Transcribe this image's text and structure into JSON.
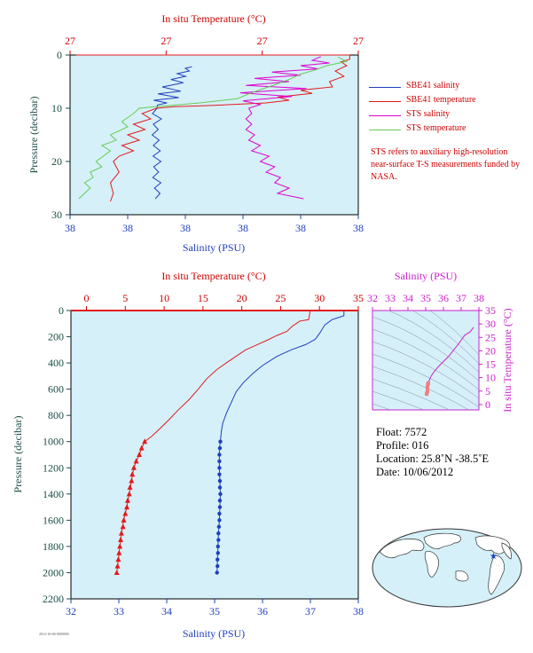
{
  "colors": {
    "temp": "#e31a1c",
    "salinity": "#1f3fbf",
    "sts_sal": "#e000d0",
    "sts_temp": "#66cc55",
    "axis_teal": "#1a4d44",
    "pink": "#cc22cc",
    "bg": "#d5f0f8"
  },
  "chart_data": [
    {
      "id": "upper",
      "type": "line",
      "top_axis_label": "In situ Temperature (°C)",
      "bottom_axis_label": "Salinity (PSU)",
      "left_axis_label": "Pressure (decibar)",
      "top_ticks": [
        "27",
        "27",
        "27",
        "27"
      ],
      "bottom_ticks": [
        "38",
        "38",
        "38",
        "38",
        "38",
        "38"
      ],
      "left_ticks": [
        "0",
        "10",
        "20",
        "30"
      ],
      "ylim": [
        30,
        0
      ],
      "series": [
        {
          "name": "SBE41 salinity",
          "color": "#1f3fbf",
          "points": [
            [
              30.2,
              10
            ],
            [
              28.6,
              11
            ],
            [
              31.7,
              12
            ],
            [
              28.9,
              13
            ],
            [
              30.6,
              14
            ],
            [
              28.5,
              15
            ],
            [
              30.9,
              16
            ],
            [
              28.9,
              17
            ],
            [
              31.3,
              18
            ],
            [
              28.8,
              19
            ],
            [
              31.5,
              20
            ],
            [
              29.0,
              21
            ],
            [
              30.7,
              22
            ],
            [
              28.7,
              23
            ],
            [
              31.5,
              24
            ],
            [
              29.3,
              25
            ],
            [
              31.2,
              26
            ],
            [
              29.6,
              27
            ],
            [
              30.3,
              9.4
            ],
            [
              33.6,
              9.0
            ],
            [
              29.0,
              8.5
            ],
            [
              37.7,
              8.0
            ],
            [
              30.5,
              7.3
            ],
            [
              38.4,
              6.8
            ],
            [
              32.0,
              6.0
            ],
            [
              39.3,
              5.2
            ],
            [
              35.0,
              4.6
            ],
            [
              40.1,
              4.0
            ],
            [
              37.2,
              3.5
            ],
            [
              41.4,
              3.0
            ],
            [
              40.0,
              2.5
            ],
            [
              42.3,
              2.2
            ]
          ]
        },
        {
          "name": "SBE41 temperature",
          "color": "#e31a1c",
          "points": [
            [
              2,
              0
            ],
            [
              97,
              0
            ],
            [
              97,
              0.8
            ],
            [
              94,
              1.3
            ],
            [
              96,
              2
            ],
            [
              92,
              3
            ],
            [
              95,
              4
            ],
            [
              90,
              5
            ],
            [
              91,
              6
            ],
            [
              80,
              6.6
            ],
            [
              84,
              7.2
            ],
            [
              72,
              7.9
            ],
            [
              76,
              8.5
            ],
            [
              68,
              9.0
            ],
            [
              48,
              9.5
            ],
            [
              36,
              9.7
            ],
            [
              30,
              10
            ],
            [
              25,
              11
            ],
            [
              28,
              12
            ],
            [
              22,
              13
            ],
            [
              26,
              14
            ],
            [
              20,
              15
            ],
            [
              24,
              16
            ],
            [
              18,
              17
            ],
            [
              22,
              18
            ],
            [
              17,
              19
            ],
            [
              15,
              20
            ],
            [
              17,
              22
            ],
            [
              14,
              24
            ],
            [
              15,
              26
            ],
            [
              14,
              27.5
            ]
          ]
        },
        {
          "name": "STS salinity",
          "color": "#e000d0",
          "points": [
            [
              87,
              0.3
            ],
            [
              84,
              1.0
            ],
            [
              90,
              1.5
            ],
            [
              80,
              2.0
            ],
            [
              86,
              2.6
            ],
            [
              70,
              3.2
            ],
            [
              80,
              3.8
            ],
            [
              64,
              4.4
            ],
            [
              76,
              5.0
            ],
            [
              61,
              5.7
            ],
            [
              82,
              6.3
            ],
            [
              59,
              7.1
            ],
            [
              77,
              7.8
            ],
            [
              60,
              8.6
            ],
            [
              66,
              9.3
            ],
            [
              62,
              10
            ],
            [
              63,
              11
            ],
            [
              61,
              12
            ],
            [
              63,
              13
            ],
            [
              61,
              14
            ],
            [
              64,
              15
            ],
            [
              62,
              16
            ],
            [
              66,
              17
            ],
            [
              63,
              18
            ],
            [
              69,
              19
            ],
            [
              66,
              20
            ],
            [
              71,
              21
            ],
            [
              68,
              22
            ],
            [
              73,
              23
            ],
            [
              71,
              24
            ],
            [
              76,
              25
            ],
            [
              72,
              26
            ],
            [
              81,
              27
            ]
          ]
        },
        {
          "name": "STS temperature",
          "color": "#66cc55",
          "points": [
            [
              93,
              0.4
            ],
            [
              96,
              1.2
            ],
            [
              89,
              2.0
            ],
            [
              85,
              2.8
            ],
            [
              80,
              3.6
            ],
            [
              76,
              4.6
            ],
            [
              71,
              5.6
            ],
            [
              66,
              6.5
            ],
            [
              62,
              7.3
            ],
            [
              58,
              8.2
            ],
            [
              45,
              9.0
            ],
            [
              32,
              9.6
            ],
            [
              24,
              10
            ],
            [
              22,
              11.0
            ],
            [
              18,
              12.5
            ],
            [
              20,
              13.5
            ],
            [
              14,
              15
            ],
            [
              16,
              16
            ],
            [
              11,
              17
            ],
            [
              14,
              18
            ],
            [
              9,
              20
            ],
            [
              11,
              21
            ],
            [
              7,
              22
            ],
            [
              8,
              23
            ],
            [
              5,
              24
            ],
            [
              7,
              25
            ],
            [
              3,
              27
            ]
          ]
        }
      ]
    },
    {
      "id": "lower",
      "type": "line",
      "top_axis_label": "In situ Temperature (°C)",
      "bottom_axis_label": "Salinity (PSU)",
      "left_axis_label": "Pressure (decibar)",
      "top_ticks": [
        "0",
        "5",
        "10",
        "15",
        "20",
        "25",
        "30",
        "35"
      ],
      "bottom_ticks": [
        "32",
        "33",
        "34",
        "35",
        "36",
        "37",
        "38"
      ],
      "left_ticks": [
        "0",
        "200",
        "400",
        "600",
        "800",
        "1000",
        "1200",
        "1400",
        "1600",
        "1800",
        "2000",
        "2200"
      ],
      "xlim_temp": [
        -2,
        35
      ],
      "xlim_sal": [
        32,
        38
      ],
      "ylim": [
        2200,
        0
      ],
      "temperature": [
        [
          28.8,
          0
        ],
        [
          28.7,
          40
        ],
        [
          28.6,
          70
        ],
        [
          27.5,
          80
        ],
        [
          26.5,
          120
        ],
        [
          25.8,
          160
        ],
        [
          24.5,
          190
        ],
        [
          23.5,
          220
        ],
        [
          22.0,
          260
        ],
        [
          20.5,
          300
        ],
        [
          19.5,
          340
        ],
        [
          18.0,
          400
        ],
        [
          16.8,
          450
        ],
        [
          15.5,
          520
        ],
        [
          14.4,
          600
        ],
        [
          13.2,
          680
        ],
        [
          11.8,
          760
        ],
        [
          10.5,
          840
        ],
        [
          9.3,
          910
        ],
        [
          8.4,
          960
        ],
        [
          7.5,
          1000
        ],
        [
          7.1,
          1050
        ],
        [
          6.8,
          1100
        ],
        [
          6.4,
          1150
        ],
        [
          6.1,
          1200
        ],
        [
          5.8,
          1300
        ],
        [
          5.5,
          1400
        ],
        [
          5.2,
          1500
        ],
        [
          4.8,
          1600
        ],
        [
          4.5,
          1700
        ],
        [
          4.3,
          1800
        ],
        [
          4.1,
          1900
        ],
        [
          3.9,
          2000
        ]
      ],
      "salinity": [
        [
          37.7,
          0
        ],
        [
          37.7,
          40
        ],
        [
          37.45,
          70
        ],
        [
          37.3,
          110
        ],
        [
          37.2,
          170
        ],
        [
          37.1,
          220
        ],
        [
          36.9,
          260
        ],
        [
          36.6,
          300
        ],
        [
          36.3,
          350
        ],
        [
          36.0,
          420
        ],
        [
          35.8,
          480
        ],
        [
          35.6,
          550
        ],
        [
          35.45,
          620
        ],
        [
          35.35,
          700
        ],
        [
          35.25,
          780
        ],
        [
          35.17,
          860
        ],
        [
          35.14,
          920
        ],
        [
          35.12,
          1000
        ],
        [
          35.1,
          1050
        ],
        [
          35.1,
          1100
        ],
        [
          35.1,
          1150
        ],
        [
          35.1,
          1200
        ],
        [
          35.11,
          1300
        ],
        [
          35.12,
          1400
        ],
        [
          35.11,
          1500
        ],
        [
          35.1,
          1600
        ],
        [
          35.08,
          1700
        ],
        [
          35.07,
          1800
        ],
        [
          35.06,
          1900
        ],
        [
          35.05,
          2000
        ]
      ],
      "temp_markers": [
        [
          7.5,
          1000
        ],
        [
          7.1,
          1050
        ],
        [
          6.8,
          1100
        ],
        [
          6.4,
          1150
        ],
        [
          6.1,
          1200
        ],
        [
          5.9,
          1250
        ],
        [
          5.8,
          1300
        ],
        [
          5.6,
          1350
        ],
        [
          5.5,
          1400
        ],
        [
          5.3,
          1450
        ],
        [
          5.2,
          1500
        ],
        [
          5.0,
          1550
        ],
        [
          4.8,
          1600
        ],
        [
          4.7,
          1650
        ],
        [
          4.5,
          1700
        ],
        [
          4.4,
          1750
        ],
        [
          4.3,
          1800
        ],
        [
          4.2,
          1850
        ],
        [
          4.1,
          1900
        ],
        [
          4.0,
          1950
        ],
        [
          3.9,
          2000
        ]
      ],
      "sal_markers": [
        [
          35.12,
          1000
        ],
        [
          35.11,
          1050
        ],
        [
          35.1,
          1100
        ],
        [
          35.1,
          1150
        ],
        [
          35.1,
          1200
        ],
        [
          35.1,
          1250
        ],
        [
          35.11,
          1300
        ],
        [
          35.11,
          1350
        ],
        [
          35.12,
          1400
        ],
        [
          35.11,
          1450
        ],
        [
          35.11,
          1500
        ],
        [
          35.1,
          1550
        ],
        [
          35.1,
          1600
        ],
        [
          35.09,
          1650
        ],
        [
          35.08,
          1700
        ],
        [
          35.08,
          1750
        ],
        [
          35.07,
          1800
        ],
        [
          35.07,
          1850
        ],
        [
          35.06,
          1900
        ],
        [
          35.06,
          1950
        ],
        [
          35.05,
          2000
        ]
      ]
    },
    {
      "id": "ts_diagram",
      "type": "line",
      "top_axis_label": "Salinity (PSU)",
      "right_axis_label": "In situ Temperature (°C)",
      "top_ticks": [
        "32",
        "33",
        "34",
        "35",
        "36",
        "37",
        "38"
      ],
      "right_ticks": [
        "0",
        "5",
        "10",
        "15",
        "20",
        "25",
        "30",
        "35"
      ],
      "xlim": [
        32,
        38
      ],
      "ylim": [
        -2,
        35
      ],
      "profile": [
        [
          37.7,
          28.8
        ],
        [
          37.5,
          27
        ],
        [
          37.2,
          25.8
        ],
        [
          36.9,
          23
        ],
        [
          36.6,
          20.5
        ],
        [
          36.3,
          18
        ],
        [
          36.0,
          16
        ],
        [
          35.7,
          14
        ],
        [
          35.45,
          12
        ],
        [
          35.3,
          10.5
        ],
        [
          35.2,
          9
        ],
        [
          35.15,
          8
        ],
        [
          35.12,
          7.5
        ],
        [
          35.1,
          6.4
        ],
        [
          35.1,
          5.5
        ],
        [
          35.1,
          4.8
        ],
        [
          35.06,
          4.1
        ],
        [
          35.05,
          3.9
        ]
      ]
    }
  ],
  "legend": [
    {
      "label": "SBE41 salinity",
      "color": "#1f3fbf"
    },
    {
      "label": "SBE41 temperature",
      "color": "#e31a1c"
    },
    {
      "label": "STS salinity",
      "color": "#e000d0"
    },
    {
      "label": "STS temperature",
      "color": "#66cc55"
    }
  ],
  "note": "STS refers to auxiliary high-resolution near-surface T-S measurements funded by NASA.",
  "float_info": {
    "float": "Float:  7572",
    "profile": "Profile:  016",
    "location": "Location:  25.8˚N  -38.5˚E",
    "date": "Date:  10/06/2012"
  },
  "stamp": "2012-10-06 0000000"
}
